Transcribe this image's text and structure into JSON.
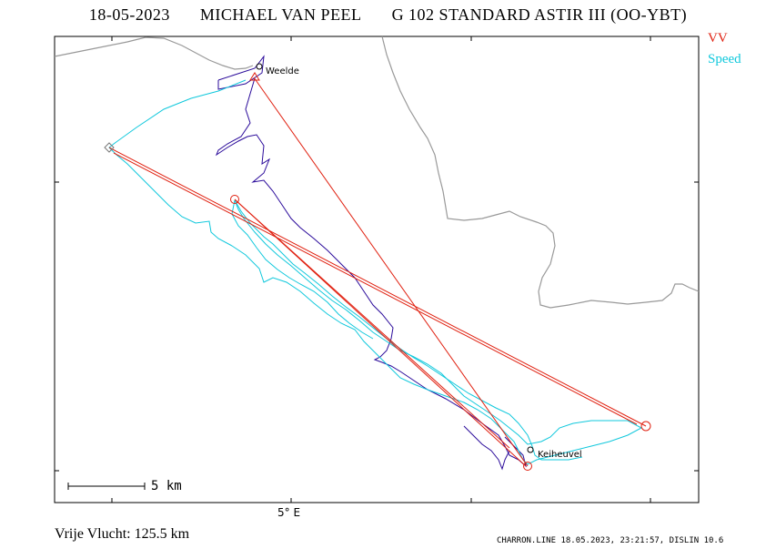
{
  "header": {
    "date": "18-05-2023",
    "pilot": "MICHAEL VAN PEEL",
    "glider": "G 102 STANDARD ASTIR III (OO-YBT)"
  },
  "legend": {
    "vv": "VV",
    "speed": "Speed",
    "vv_color": "#e02010",
    "speed_color": "#10c8dc",
    "track_color": "#2a0a9a"
  },
  "map": {
    "waypoints": [
      "Weelde",
      "Keiheuvel"
    ],
    "longitude_label": "5° E",
    "scale_label": "5 km"
  },
  "summary": {
    "free_flight": "Vrije Vlucht:  125.5 km"
  },
  "footer": {
    "info": "CHARRON.LINE 18.05.2023, 23:21:57, DISLIN 10.6"
  }
}
